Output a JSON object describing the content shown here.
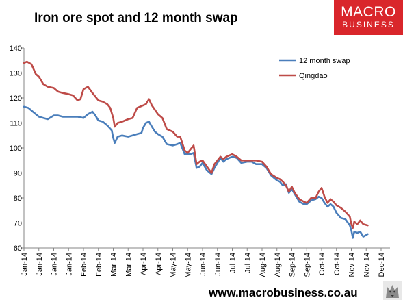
{
  "header": {
    "title": "Iron ore spot and 12 month swap",
    "logo_top": "MACRO",
    "logo_bottom": "BUSINESS"
  },
  "footer": {
    "url": "www.macrobusiness.co.au"
  },
  "colors": {
    "swap": "#4a7ebb",
    "qingdao": "#be4b48",
    "logo_bg": "#d9262b"
  },
  "chart_data": {
    "type": "line",
    "title": "Iron ore spot and 12 month swap",
    "xlabel": "",
    "ylabel": "",
    "ylim": [
      60,
      140
    ],
    "yticks": [
      60,
      70,
      80,
      90,
      100,
      110,
      120,
      130,
      140
    ],
    "ytick_labels": [
      "60",
      "70",
      "80",
      "90",
      "100",
      "110",
      "120",
      "130",
      "140"
    ],
    "xtick_labels": [
      "Jan-14",
      "Jan-14",
      "Jan-14",
      "Jan-14",
      "Feb-14",
      "Feb-14",
      "Mar-14",
      "Mar-14",
      "Apr-14",
      "Apr-14",
      "May-14",
      "May-14",
      "Jun-14",
      "Jun-14",
      "Jul-14",
      "Jul-14",
      "Aug-14",
      "Aug-14",
      "Sep-14",
      "Sep-14",
      "Oct-14",
      "Oct-14",
      "Nov-14",
      "Nov-14",
      "Dec-14"
    ],
    "grid": false,
    "legend_position": "top-right",
    "series": [
      {
        "name": "12 month swap",
        "color": "#4a7ebb",
        "points": [
          [
            0,
            116.5
          ],
          [
            0.3,
            116
          ],
          [
            0.6,
            114.5
          ],
          [
            1,
            112.5
          ],
          [
            1.3,
            112
          ],
          [
            1.6,
            111.5
          ],
          [
            2,
            113
          ],
          [
            2.3,
            113
          ],
          [
            2.6,
            112.5
          ],
          [
            3,
            112.5
          ],
          [
            3.3,
            112.5
          ],
          [
            3.6,
            112.5
          ],
          [
            4,
            112
          ],
          [
            4.3,
            113.5
          ],
          [
            4.6,
            114.5
          ],
          [
            4.8,
            113
          ],
          [
            5,
            111
          ],
          [
            5.3,
            110.5
          ],
          [
            5.6,
            109
          ],
          [
            5.9,
            107
          ],
          [
            6,
            104
          ],
          [
            6.1,
            102
          ],
          [
            6.3,
            104.5
          ],
          [
            6.6,
            105
          ],
          [
            7,
            104.5
          ],
          [
            7.3,
            105
          ],
          [
            7.6,
            105.5
          ],
          [
            7.9,
            106
          ],
          [
            8,
            108
          ],
          [
            8.2,
            110
          ],
          [
            8.4,
            110.5
          ],
          [
            8.6,
            108.5
          ],
          [
            8.8,
            106.5
          ],
          [
            9,
            105.5
          ],
          [
            9.3,
            104.5
          ],
          [
            9.6,
            101.5
          ],
          [
            10,
            101
          ],
          [
            10.3,
            101.5
          ],
          [
            10.5,
            102
          ],
          [
            10.8,
            97.5
          ],
          [
            11,
            97.5
          ],
          [
            11.2,
            97.5
          ],
          [
            11.4,
            98
          ],
          [
            11.6,
            92
          ],
          [
            11.8,
            92.5
          ],
          [
            12,
            94
          ],
          [
            12.3,
            91
          ],
          [
            12.6,
            89.5
          ],
          [
            12.8,
            92
          ],
          [
            13,
            94
          ],
          [
            13.2,
            96
          ],
          [
            13.4,
            94.5
          ],
          [
            13.6,
            95.5
          ],
          [
            14,
            96.5
          ],
          [
            14.3,
            96
          ],
          [
            14.6,
            94
          ],
          [
            15,
            94.5
          ],
          [
            15.3,
            94.5
          ],
          [
            15.6,
            93.5
          ],
          [
            16,
            93.5
          ],
          [
            16.3,
            92
          ],
          [
            16.6,
            89
          ],
          [
            17,
            87
          ],
          [
            17.2,
            86.5
          ],
          [
            17.4,
            85
          ],
          [
            17.6,
            85.5
          ],
          [
            17.8,
            82
          ],
          [
            18,
            83.5
          ],
          [
            18.2,
            81.5
          ],
          [
            18.5,
            78.5
          ],
          [
            18.8,
            77.5
          ],
          [
            19,
            77.5
          ],
          [
            19.3,
            79
          ],
          [
            19.6,
            79.5
          ],
          [
            19.8,
            80.5
          ],
          [
            20,
            80
          ],
          [
            20.2,
            78
          ],
          [
            20.4,
            76.5
          ],
          [
            20.6,
            77.5
          ],
          [
            20.8,
            76.5
          ],
          [
            21,
            74
          ],
          [
            21.3,
            72
          ],
          [
            21.6,
            71.5
          ],
          [
            21.9,
            69
          ],
          [
            22,
            67
          ],
          [
            22.1,
            64
          ],
          [
            22.2,
            66.5
          ],
          [
            22.4,
            66
          ],
          [
            22.6,
            66.5
          ],
          [
            22.8,
            64.5
          ],
          [
            23.1,
            65.5
          ]
        ]
      },
      {
        "name": "Qingdao",
        "color": "#be4b48",
        "points": [
          [
            0,
            134
          ],
          [
            0.2,
            134.5
          ],
          [
            0.5,
            133.5
          ],
          [
            0.8,
            129.5
          ],
          [
            1,
            128.5
          ],
          [
            1.3,
            125.5
          ],
          [
            1.6,
            124.5
          ],
          [
            2,
            124
          ],
          [
            2.3,
            122.5
          ],
          [
            2.6,
            122
          ],
          [
            3,
            121.5
          ],
          [
            3.3,
            121
          ],
          [
            3.6,
            119
          ],
          [
            3.8,
            119.5
          ],
          [
            4,
            123.5
          ],
          [
            4.3,
            124.5
          ],
          [
            4.6,
            122
          ],
          [
            5,
            119
          ],
          [
            5.3,
            118.5
          ],
          [
            5.6,
            117.5
          ],
          [
            5.8,
            116
          ],
          [
            6,
            112
          ],
          [
            6.1,
            108.5
          ],
          [
            6.3,
            110
          ],
          [
            6.6,
            110.5
          ],
          [
            7,
            111.5
          ],
          [
            7.3,
            112
          ],
          [
            7.6,
            116
          ],
          [
            8,
            117
          ],
          [
            8.2,
            117.5
          ],
          [
            8.4,
            119.5
          ],
          [
            8.6,
            117
          ],
          [
            9,
            113.5
          ],
          [
            9.3,
            112
          ],
          [
            9.6,
            107.5
          ],
          [
            10,
            106.5
          ],
          [
            10.3,
            104.5
          ],
          [
            10.5,
            104.5
          ],
          [
            10.8,
            99
          ],
          [
            11,
            98
          ],
          [
            11.2,
            99.5
          ],
          [
            11.4,
            101
          ],
          [
            11.6,
            93.5
          ],
          [
            11.8,
            94.5
          ],
          [
            12,
            95
          ],
          [
            12.3,
            92.5
          ],
          [
            12.6,
            90
          ],
          [
            12.8,
            93.5
          ],
          [
            13,
            95
          ],
          [
            13.2,
            96.5
          ],
          [
            13.4,
            95.5
          ],
          [
            13.6,
            96.5
          ],
          [
            14,
            97.5
          ],
          [
            14.3,
            96.5
          ],
          [
            14.6,
            95
          ],
          [
            15,
            95
          ],
          [
            15.3,
            95
          ],
          [
            15.6,
            95
          ],
          [
            16,
            94.5
          ],
          [
            16.3,
            92.5
          ],
          [
            16.6,
            89.5
          ],
          [
            17,
            88
          ],
          [
            17.2,
            87.5
          ],
          [
            17.4,
            86.5
          ],
          [
            17.6,
            85
          ],
          [
            17.8,
            82.5
          ],
          [
            18,
            84.5
          ],
          [
            18.2,
            82
          ],
          [
            18.5,
            79.5
          ],
          [
            18.8,
            78.5
          ],
          [
            19,
            78
          ],
          [
            19.3,
            80
          ],
          [
            19.6,
            80
          ],
          [
            19.8,
            82.5
          ],
          [
            20,
            84
          ],
          [
            20.2,
            80.5
          ],
          [
            20.4,
            78
          ],
          [
            20.6,
            79.5
          ],
          [
            20.8,
            78.5
          ],
          [
            21,
            77
          ],
          [
            21.3,
            76
          ],
          [
            21.6,
            74.5
          ],
          [
            21.9,
            72.5
          ],
          [
            22,
            69.5
          ],
          [
            22.1,
            68
          ],
          [
            22.2,
            70.5
          ],
          [
            22.4,
            69.5
          ],
          [
            22.6,
            71
          ],
          [
            22.8,
            69.5
          ],
          [
            23.1,
            69
          ]
        ]
      }
    ]
  }
}
